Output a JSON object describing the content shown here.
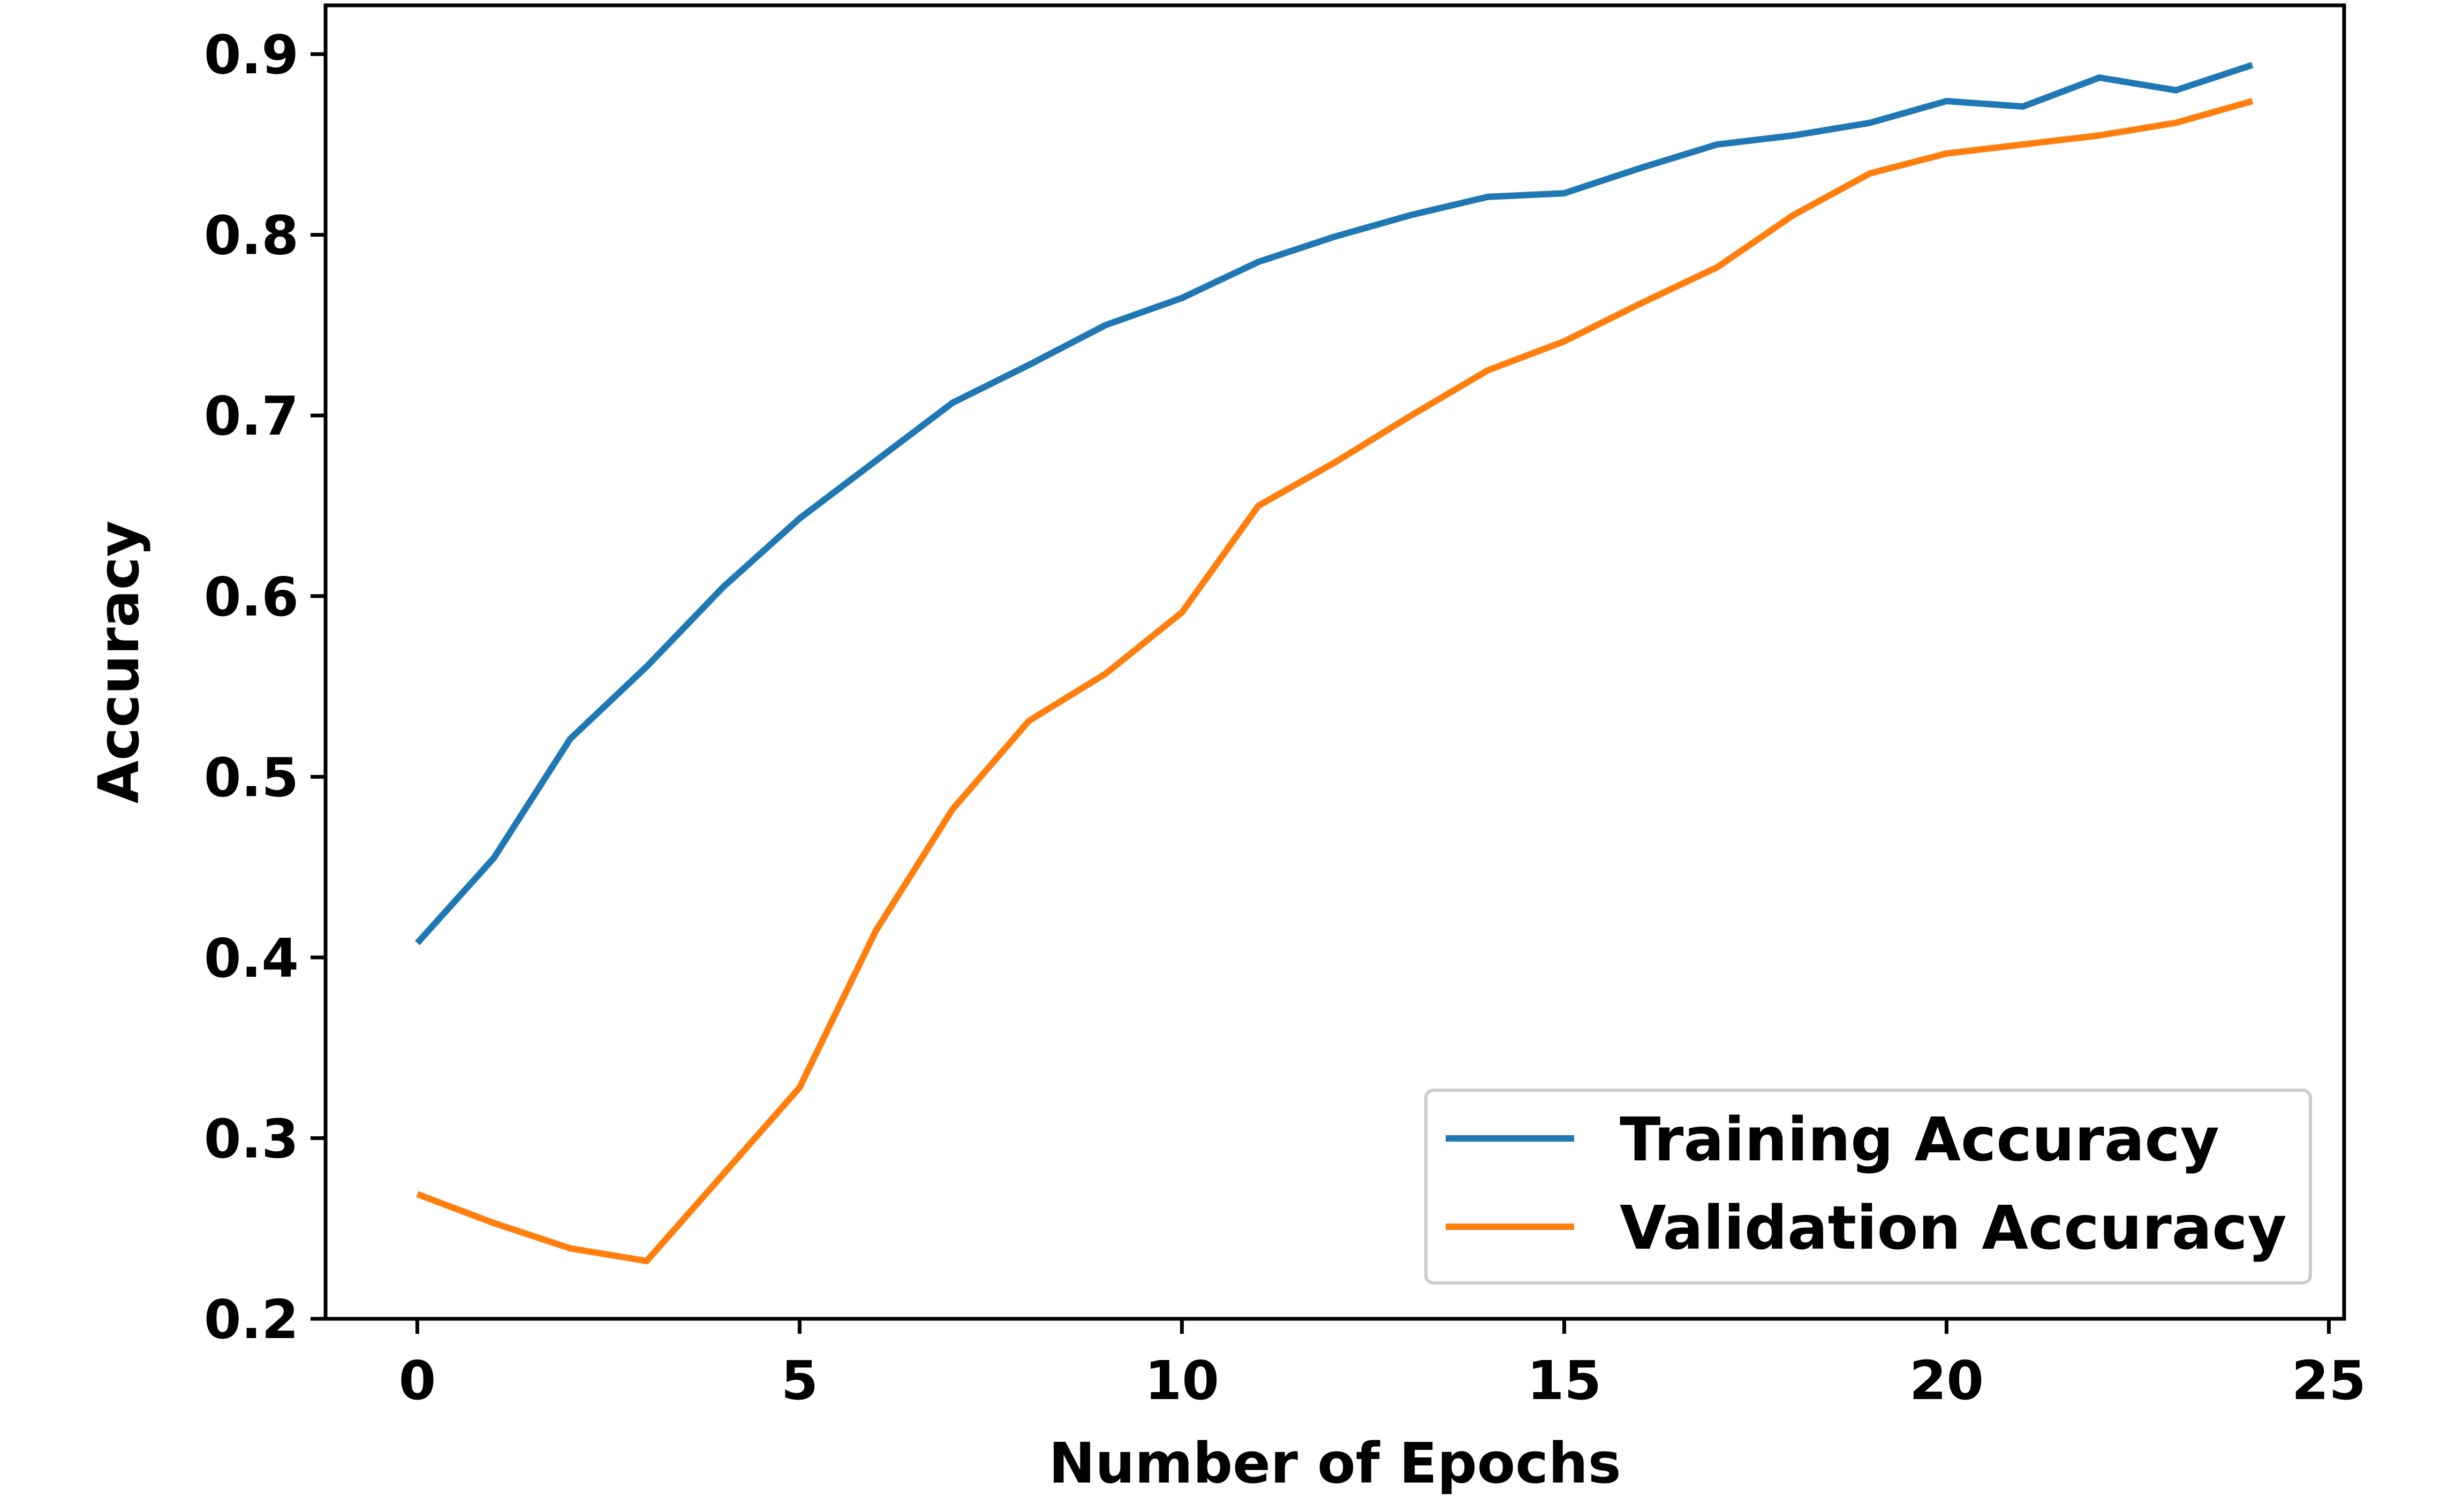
{
  "chart_data": {
    "type": "line",
    "title": "",
    "xlabel": "Number of Epochs",
    "ylabel": "Accuracy",
    "xlim": [
      -1.2,
      25.2
    ],
    "ylim": [
      0.2,
      0.927
    ],
    "xticks": [
      "0",
      "5",
      "10",
      "15",
      "20",
      "25"
    ],
    "yticks": [
      "0.2",
      "0.3",
      "0.4",
      "0.5",
      "0.6",
      "0.7",
      "0.8",
      "0.9"
    ],
    "grid": false,
    "legend_position": "lower-right",
    "x": [
      0,
      1,
      2,
      3,
      4,
      5,
      6,
      7,
      8,
      9,
      10,
      11,
      12,
      13,
      14,
      15,
      16,
      17,
      18,
      19,
      20,
      21,
      22,
      23,
      24
    ],
    "series": [
      {
        "name": "Training Accuracy",
        "color": "#1f77b4",
        "values": [
          0.408,
          0.455,
          0.521,
          0.561,
          0.605,
          0.643,
          0.675,
          0.707,
          0.728,
          0.75,
          0.765,
          0.785,
          0.799,
          0.811,
          0.821,
          0.823,
          0.837,
          0.85,
          0.855,
          0.862,
          0.874,
          0.871,
          0.887,
          0.88,
          0.894
        ]
      },
      {
        "name": "Validation Accuracy",
        "color": "#ff7f0e",
        "values": [
          0.269,
          0.253,
          0.239,
          0.232,
          0.28,
          0.328,
          0.415,
          0.482,
          0.531,
          0.557,
          0.591,
          0.65,
          0.674,
          0.7,
          0.725,
          0.741,
          0.762,
          0.782,
          0.811,
          0.834,
          0.845,
          0.85,
          0.855,
          0.862,
          0.874
        ]
      }
    ]
  }
}
